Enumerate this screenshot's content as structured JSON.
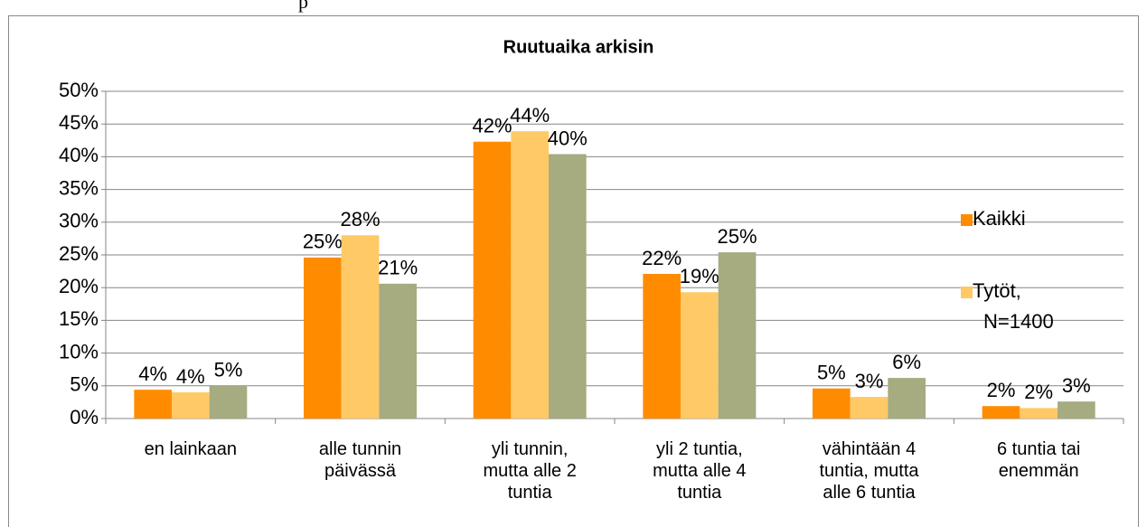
{
  "page_text": "p",
  "chart_data": {
    "type": "bar",
    "title": "Ruutuaika arkisin",
    "categories": [
      "en lainkaan",
      "alle tunnin päivässä",
      "yli tunnin, mutta alle 2 tuntia",
      "yli 2 tuntia, mutta alle 4 tuntia",
      "vähintään 4 tuntia, mutta alle 6 tuntia",
      "6 tuntia tai enemmän"
    ],
    "series": [
      {
        "name": "Kaikki",
        "color": "#ff8c00",
        "values": [
          4.4,
          24.6,
          42.3,
          22.1,
          4.6,
          1.9
        ],
        "value_labels": [
          "4%",
          "25%",
          "42%",
          "22%",
          "5%",
          "2%"
        ]
      },
      {
        "name": "Tytöt, N=1400",
        "color": "#ffc966",
        "values": [
          4.0,
          28.0,
          43.9,
          19.3,
          3.3,
          1.6
        ],
        "value_labels": [
          "4%",
          "28%",
          "44%",
          "19%",
          "3%",
          "2%"
        ]
      },
      {
        "color": "#a6ab80",
        "values": [
          5.0,
          20.6,
          40.4,
          25.4,
          6.2,
          2.6
        ],
        "value_labels": [
          "5%",
          "21%",
          "40%",
          "25%",
          "6%",
          "3%"
        ]
      }
    ],
    "ylim": [
      0,
      50
    ],
    "yticks": [
      {
        "value": 0,
        "label": "0%"
      },
      {
        "value": 5,
        "label": "5%"
      },
      {
        "value": 10,
        "label": "10%"
      },
      {
        "value": 15,
        "label": "15%"
      },
      {
        "value": 20,
        "label": "20%"
      },
      {
        "value": 25,
        "label": "25%"
      },
      {
        "value": 30,
        "label": "30%"
      },
      {
        "value": 35,
        "label": "35%"
      },
      {
        "value": 40,
        "label": "40%"
      },
      {
        "value": 45,
        "label": "45%"
      },
      {
        "value": 50,
        "label": "50%"
      }
    ],
    "grid": true,
    "legend": "right"
  }
}
